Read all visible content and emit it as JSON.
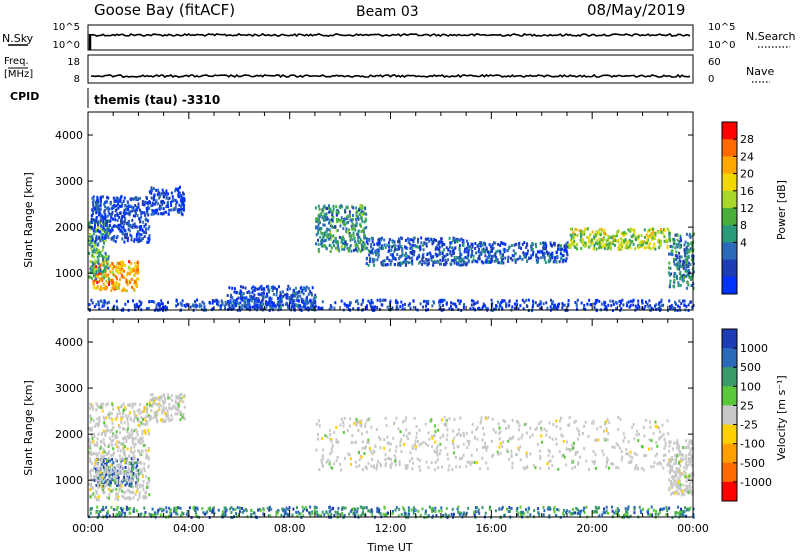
{
  "header": {
    "station": "Goose Bay (fitACF)",
    "beam": "Beam 03",
    "date": "08/May/2019"
  },
  "colors": {
    "scatter_gray": "#c8c8c8",
    "trace": "#000000"
  },
  "chart_data": [
    {
      "type": "line",
      "name_label": "N.Sky",
      "right_label": "N.Search",
      "left_ticks": [
        "10^5",
        "10^0"
      ],
      "right_ticks": [
        "10^5",
        "10^0"
      ],
      "level_fraction": 0.6
    },
    {
      "type": "line",
      "name_label": "Freq.",
      "unit_label": "[MHz]",
      "right_label": "Nave",
      "left_ticks": [
        "18",
        "8"
      ],
      "right_ticks": [
        "60",
        "0"
      ],
      "level_fraction": 0.25
    },
    {
      "type": "line",
      "name_label": "CPID",
      "program_label": "themis (tau)  -3310"
    },
    {
      "type": "heatmap",
      "quantity": "power",
      "ylabel": "Slant Range [km]",
      "ylim": [
        200,
        4500
      ],
      "yticks": [
        "4000",
        "3000",
        "2000",
        "1000"
      ],
      "xlim_hours": [
        0,
        24
      ],
      "colorbar": {
        "label": "Power [dB]",
        "ticks": [
          "28",
          "24",
          "20",
          "16",
          "12",
          "8",
          "4"
        ],
        "colors": [
          "#ff0000",
          "#ff6a00",
          "#ffa800",
          "#f0d800",
          "#a8d62a",
          "#4aae3a",
          "#2a9a7a",
          "#2a6ab8",
          "#1e3cb4",
          "#0032ff"
        ]
      },
      "regions": [
        {
          "t0": 0.15,
          "t1": 2.0,
          "r0": 650,
          "r1": 1300,
          "level": 0.75
        },
        {
          "t0": 0.0,
          "t1": 0.8,
          "r0": 900,
          "r1": 2200,
          "level": 0.4
        },
        {
          "t0": 0.1,
          "t1": 2.4,
          "r0": 1700,
          "r1": 2700,
          "level": 0.12
        },
        {
          "t0": 2.4,
          "t1": 3.8,
          "r0": 2300,
          "r1": 2900,
          "level": 0.12
        },
        {
          "t0": 9.0,
          "t1": 11.0,
          "r0": 1500,
          "r1": 2500,
          "level": 0.35
        },
        {
          "t0": 11.0,
          "t1": 15.0,
          "r0": 1200,
          "r1": 1800,
          "level": 0.2
        },
        {
          "t0": 15.0,
          "t1": 19.0,
          "r0": 1250,
          "r1": 1700,
          "level": 0.18
        },
        {
          "t0": 19.0,
          "t1": 23.0,
          "r0": 1550,
          "r1": 2000,
          "level": 0.55
        },
        {
          "t0": 23.0,
          "t1": 24.0,
          "r0": 700,
          "r1": 1900,
          "level": 0.3
        },
        {
          "t0": 0.0,
          "t1": 24.0,
          "r0": 220,
          "r1": 450,
          "level": 0.1
        },
        {
          "t0": 5.5,
          "t1": 9.0,
          "r0": 230,
          "r1": 750,
          "level": 0.15
        }
      ]
    },
    {
      "type": "heatmap",
      "quantity": "velocity",
      "xlabel": "Time UT",
      "ylabel": "Slant Range [km]",
      "ylim": [
        200,
        4500
      ],
      "yticks": [
        "4000",
        "3000",
        "2000",
        "1000"
      ],
      "xlim_hours": [
        0,
        24
      ],
      "xticks": [
        "00:00",
        "04:00",
        "08:00",
        "12:00",
        "16:00",
        "20:00",
        "00:00"
      ],
      "colorbar": {
        "label": "Velocity [m s⁻¹]",
        "ticks": [
          "1000",
          "500",
          "100",
          "25",
          "-25",
          "-100",
          "-500",
          "-1000"
        ],
        "colors": [
          "#1e3cb4",
          "#2a6ab8",
          "#3a9a6a",
          "#5ac83a",
          "#c8c8c8",
          "#ffd000",
          "#ffa000",
          "#ff6a00",
          "#ff0000"
        ]
      },
      "regions": [
        {
          "t0": 0.2,
          "t1": 2.0,
          "r0": 900,
          "r1": 1500,
          "level": 0.85
        },
        {
          "t0": 0.0,
          "t1": 2.4,
          "r0": 600,
          "r1": 2700,
          "level": 0.5
        },
        {
          "t0": 2.4,
          "t1": 3.8,
          "r0": 2300,
          "r1": 2900,
          "level": 0.5
        },
        {
          "t0": 9.0,
          "t1": 23.0,
          "r0": 1250,
          "r1": 2400,
          "level": 0.5
        },
        {
          "t0": 23.0,
          "t1": 24.0,
          "r0": 700,
          "r1": 1900,
          "level": 0.5
        },
        {
          "t0": 0.0,
          "t1": 24.0,
          "r0": 220,
          "r1": 450,
          "level": 0.75
        }
      ]
    }
  ]
}
